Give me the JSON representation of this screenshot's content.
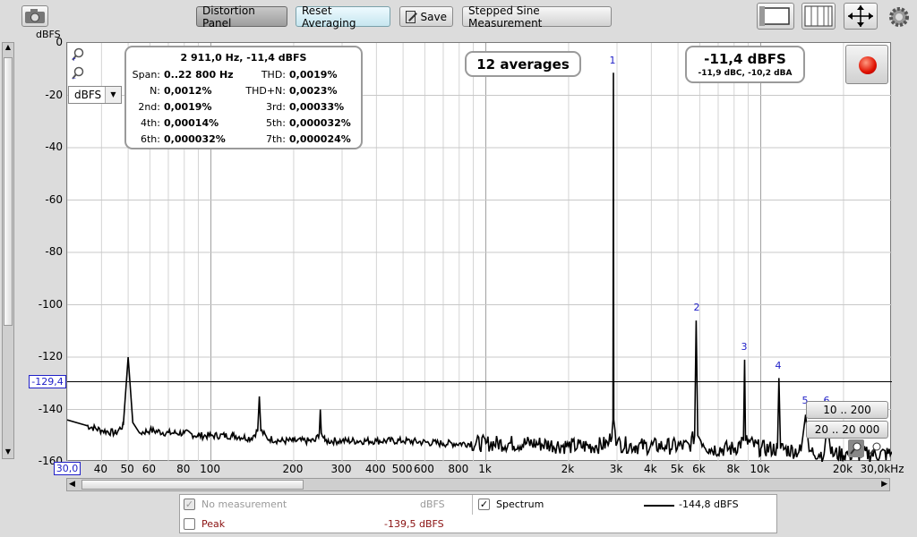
{
  "toolbar": {
    "distortion_panel": "Distortion Panel",
    "reset_averaging": "Reset Averaging",
    "save": "Save",
    "stepped_sine": "Stepped Sine Measurement"
  },
  "yaxis": {
    "unit_label": "dBFS",
    "ticks": [
      "0",
      "-20",
      "-40",
      "-60",
      "-80",
      "-100",
      "-120",
      "-140",
      "-160"
    ],
    "unit_select": "dBFS",
    "cursor_value": "-129,4"
  },
  "xaxis": {
    "min_label": "30,0",
    "ticks": [
      "40",
      "50",
      "60",
      "80",
      "100",
      "200",
      "300",
      "400",
      "500",
      "600",
      "800",
      "1k",
      "2k",
      "3k",
      "4k",
      "5k",
      "6k",
      "8k",
      "10k",
      "20k",
      "30,0kHz"
    ]
  },
  "info": {
    "header": "2 911,0 Hz, -11,4 dBFS",
    "rows": [
      {
        "l1": "Span:",
        "v1": "0..22 800 Hz",
        "l2": "THD:",
        "v2": "0,0019%"
      },
      {
        "l1": "N:",
        "v1": "0,0012%",
        "l2": "THD+N:",
        "v2": "0,0023%"
      },
      {
        "l1": "2nd:",
        "v1": "0,0019%",
        "l2": "3rd:",
        "v2": "0,00033%"
      },
      {
        "l1": "4th:",
        "v1": "0,00014%",
        "l2": "5th:",
        "v2": "0,000032%"
      },
      {
        "l1": "6th:",
        "v1": "0,000032%",
        "l2": "7th:",
        "v2": "0,000024%"
      }
    ]
  },
  "averages": "12 averages",
  "level": {
    "main": "-11,4 dBFS",
    "sub": "-11,9 dBC, -10,2 dBA"
  },
  "harmonic_labels": [
    "1",
    "2",
    "3",
    "4",
    "5",
    "6"
  ],
  "range_buttons": {
    "r1": "10 .. 200",
    "r2": "20 .. 20 000"
  },
  "bottom": {
    "no_measurement": "No measurement",
    "no_measurement_unit": "dBFS",
    "spectrum": "Spectrum",
    "spectrum_value": "-144,8 dBFS",
    "peak": "Peak",
    "peak_value": "-139,5 dBFS"
  },
  "chart_data": {
    "type": "line",
    "xscale": "log",
    "xlim": [
      30,
      30000
    ],
    "ylim": [
      -160,
      0
    ],
    "ylabel": "dBFS",
    "series": [
      {
        "name": "Spectrum",
        "x": [
          30,
          35,
          40,
          45,
          48,
          50,
          52,
          55,
          60,
          70,
          80,
          90,
          100,
          120,
          140,
          148,
          150,
          152,
          160,
          180,
          200,
          240,
          248,
          250,
          252,
          260,
          300,
          400,
          500,
          700,
          1000,
          1500,
          2000,
          2500,
          2800,
          2880,
          2900,
          2911,
          2920,
          2950,
          3000,
          3500,
          4500,
          5500,
          5750,
          5822,
          5900,
          6500,
          8000,
          8650,
          8733,
          8800,
          10000,
          11500,
          11644,
          11800,
          14000,
          14555,
          15000,
          17000,
          17466,
          18000,
          22000,
          30000
        ],
        "y": [
          -144,
          -146,
          -148,
          -149,
          -146,
          -120,
          -145,
          -149,
          -148,
          -149,
          -149,
          -150,
          -150,
          -150,
          -151,
          -148,
          -135,
          -148,
          -151,
          -152,
          -152,
          -152,
          -149,
          -140,
          -149,
          -152,
          -152,
          -152,
          -152,
          -153,
          -153,
          -153,
          -154,
          -154,
          -153,
          -148,
          -144,
          -11.4,
          -144,
          -148,
          -153,
          -154,
          -154,
          -154,
          -150,
          -106,
          -150,
          -155,
          -155,
          -152,
          -121,
          -152,
          -155,
          -155,
          -128,
          -155,
          -156,
          -142,
          -156,
          -157,
          -145,
          -157,
          -157,
          -157
        ]
      }
    ]
  }
}
